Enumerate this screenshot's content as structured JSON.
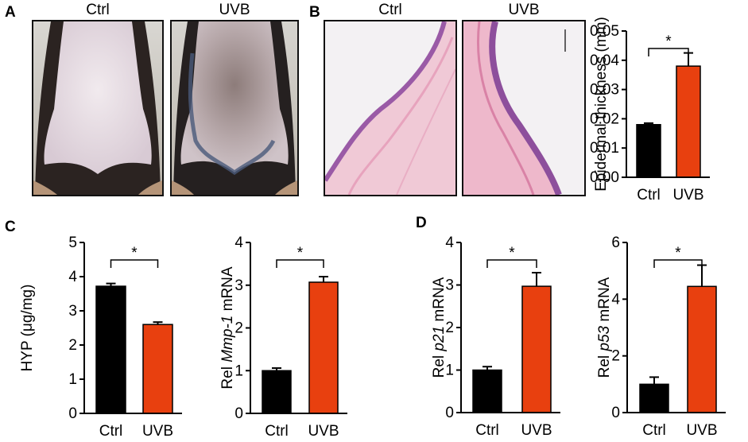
{
  "panels": {
    "A": {
      "letter": "A",
      "labels": [
        "Ctrl",
        "UVB"
      ]
    },
    "B": {
      "letter": "B",
      "labels": [
        "Ctrl",
        "UVB"
      ]
    },
    "C": {
      "letter": "C"
    },
    "D": {
      "letter": "D"
    }
  },
  "colors": {
    "ctrl": "#000000",
    "uvb": "#e8400f"
  },
  "chart_data": [
    {
      "id": "epidermal",
      "type": "bar",
      "categories": [
        "Ctrl",
        "UVB"
      ],
      "values": [
        0.018,
        0.038
      ],
      "errors": [
        0.0005,
        0.0045
      ],
      "ylabel_parts": [
        {
          "t": "Epidermal thickness (mm)",
          "i": false
        }
      ],
      "ylim": [
        0,
        0.05
      ],
      "yticks": [
        "0.00",
        "0.01",
        "0.02",
        "0.03",
        "0.04",
        "0.05"
      ],
      "significance": "*",
      "grid": false,
      "legend": "none"
    },
    {
      "id": "hyp",
      "type": "bar",
      "categories": [
        "Ctrl",
        "UVB"
      ],
      "values": [
        3.72,
        2.6
      ],
      "errors": [
        0.08,
        0.07
      ],
      "ylabel_parts": [
        {
          "t": "HYP (μg/mg)",
          "i": false
        }
      ],
      "ylim": [
        0,
        5
      ],
      "yticks": [
        "0",
        "1",
        "2",
        "3",
        "4",
        "5"
      ],
      "significance": "*",
      "grid": false,
      "legend": "none"
    },
    {
      "id": "mmp1",
      "type": "bar",
      "categories": [
        "Ctrl",
        "UVB"
      ],
      "values": [
        1.0,
        3.07
      ],
      "errors": [
        0.06,
        0.13
      ],
      "ylabel_parts": [
        {
          "t": "Rel ",
          "i": false
        },
        {
          "t": "Mmp-1",
          "i": true
        },
        {
          "t": " mRNA",
          "i": false
        }
      ],
      "ylim": [
        0,
        4
      ],
      "yticks": [
        "0",
        "1",
        "2",
        "3",
        "4"
      ],
      "significance": "*",
      "grid": false,
      "legend": "none"
    },
    {
      "id": "p21",
      "type": "bar",
      "categories": [
        "Ctrl",
        "UVB"
      ],
      "values": [
        1.0,
        2.97
      ],
      "errors": [
        0.08,
        0.32
      ],
      "ylabel_parts": [
        {
          "t": "Rel ",
          "i": false
        },
        {
          "t": "p21",
          "i": true
        },
        {
          "t": " mRNA",
          "i": false
        }
      ],
      "ylim": [
        0,
        4
      ],
      "yticks": [
        "0",
        "1",
        "2",
        "3",
        "4"
      ],
      "significance": "*",
      "grid": false,
      "legend": "none"
    },
    {
      "id": "p53",
      "type": "bar",
      "categories": [
        "Ctrl",
        "UVB"
      ],
      "values": [
        1.0,
        4.45
      ],
      "errors": [
        0.25,
        0.75
      ],
      "ylabel_parts": [
        {
          "t": "Rel ",
          "i": false
        },
        {
          "t": "p53",
          "i": true
        },
        {
          "t": " mRNA",
          "i": false
        }
      ],
      "ylim": [
        0,
        6
      ],
      "yticks": [
        "0",
        "2",
        "4",
        "6"
      ],
      "significance": "*",
      "grid": false,
      "legend": "none"
    }
  ]
}
